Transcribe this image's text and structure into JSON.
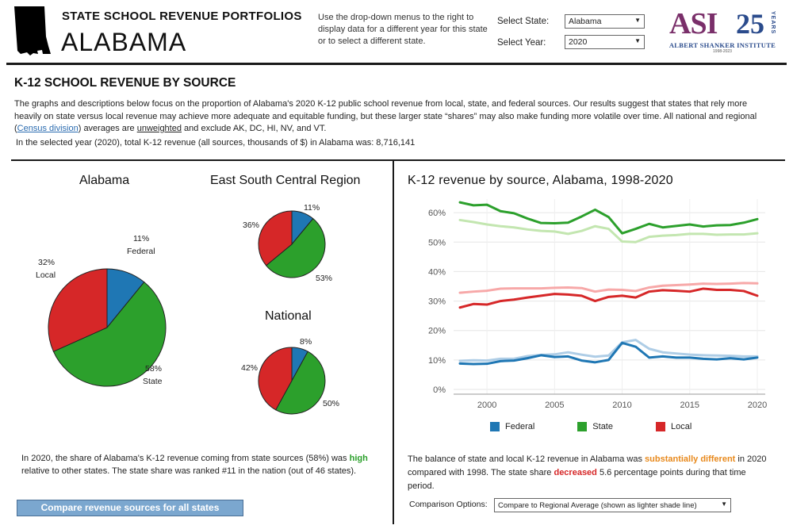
{
  "header": {
    "title": "STATE SCHOOL REVENUE PORTFOLIOS",
    "state_name": "ALABAMA",
    "instructions": "Use the drop-down menus to the right to display data for a different year for this state or to select a different state.",
    "select_state_label": "Select State:",
    "select_state_value": "Alabama",
    "select_year_label": "Select Year:",
    "select_year_value": "2020",
    "logo": {
      "letters": "ASI",
      "number": "25",
      "years": "YEARS",
      "name": "ALBERT SHANKER INSTITUTE",
      "dates": "1998-2023"
    }
  },
  "section": {
    "title": "K-12 SCHOOL REVENUE BY SOURCE",
    "para1_a": "The graphs and descriptions below focus on the proportion of Alabama's 2020 K-12 public school revenue from local, state, and federal sources. Our results suggest that states that rely more heavily on state versus local revenue may achieve more adequate and equitable funding, but these larger state “shares” may also make funding more volatile over time. All national and regional (",
    "para1_link": "Census division",
    "para1_b": ") averages are ",
    "para1_underline": "unweighted",
    "para1_c": " and exclude AK, DC, HI, NV, and VT.",
    "para2": "In the selected year (2020), total K-12 revenue (all sources, thousands of $) in Alabama was: 8,716,141"
  },
  "colors": {
    "federal": "#1f77b4",
    "state": "#2ca02c",
    "local": "#d62728",
    "federal_light": "#aecde6",
    "state_light": "#c3e6b0",
    "local_light": "#f7a8a8"
  },
  "pies": {
    "alabama": {
      "title": "Alabama",
      "labels": {
        "federal_pct": "11%",
        "federal_name": "Federal",
        "local_pct": "32%",
        "local_name": "Local",
        "state_pct": "58%",
        "state_name": "State"
      }
    },
    "region": {
      "title": "East South Central Region",
      "labels": {
        "federal_pct": "11%",
        "local_pct": "36%",
        "state_pct": "53%"
      }
    },
    "national": {
      "title": "National",
      "labels": {
        "federal_pct": "8%",
        "local_pct": "42%",
        "state_pct": "50%"
      }
    }
  },
  "state_text": {
    "a": "In 2020, the share of Alabama's K-12 revenue coming from state sources (58%) was ",
    "highlight": "high",
    "b": " relative to other states. The state share was ranked #11 in the nation (out of 46 states)."
  },
  "compare_button": "Compare revenue sources for all states",
  "balance_text": {
    "a": "The balance of state and local K-12 revenue in Alabama was ",
    "highlight1": "substantially different",
    "b": " in 2020 compared with 1998. The state share ",
    "highlight2": "decreased",
    "c": " 5.6 percentage points during that time period."
  },
  "comparison": {
    "label": "Comparison Options:",
    "value": "Compare to Regional Average (shown as lighter shade line)"
  },
  "chart_data": [
    {
      "type": "pie",
      "title": "Alabama",
      "categories": [
        "Federal",
        "State",
        "Local"
      ],
      "values": [
        11,
        58,
        32
      ]
    },
    {
      "type": "pie",
      "title": "East South Central Region",
      "categories": [
        "Federal",
        "State",
        "Local"
      ],
      "values": [
        11,
        53,
        36
      ]
    },
    {
      "type": "pie",
      "title": "National",
      "categories": [
        "Federal",
        "State",
        "Local"
      ],
      "values": [
        8,
        50,
        42
      ]
    },
    {
      "type": "line",
      "title": "K-12 revenue by source, Alabama, 1998-2020",
      "x": [
        1998,
        1999,
        2000,
        2001,
        2002,
        2003,
        2004,
        2005,
        2006,
        2007,
        2008,
        2009,
        2010,
        2011,
        2012,
        2013,
        2014,
        2015,
        2016,
        2017,
        2018,
        2019,
        2020
      ],
      "xticks": [
        "2000",
        "2005",
        "2010",
        "2015",
        "2020"
      ],
      "yticks": [
        "0%",
        "10%",
        "20%",
        "30%",
        "40%",
        "50%",
        "60%"
      ],
      "ylim": [
        0,
        63
      ],
      "grid": true,
      "legend_position": "bottom",
      "series": [
        {
          "name": "State",
          "values": [
            63.5,
            62.5,
            62.7,
            60.5,
            59.8,
            58.0,
            56.5,
            56.4,
            56.6,
            58.7,
            61.0,
            58.5,
            53.0,
            54.5,
            56.2,
            55.0,
            55.5,
            56.0,
            55.3,
            55.7,
            55.8,
            56.6,
            57.8
          ]
        },
        {
          "name": "Local",
          "values": [
            27.8,
            29.0,
            28.8,
            30.0,
            30.5,
            31.2,
            31.8,
            32.4,
            32.2,
            31.8,
            30.0,
            31.4,
            31.8,
            31.2,
            33.2,
            33.7,
            33.5,
            33.2,
            34.2,
            33.8,
            33.8,
            33.4,
            31.8
          ]
        },
        {
          "name": "Federal",
          "values": [
            8.8,
            8.6,
            8.7,
            9.6,
            9.8,
            10.6,
            11.6,
            11.0,
            11.2,
            9.8,
            9.2,
            10.0,
            15.8,
            14.5,
            10.8,
            11.2,
            10.8,
            10.8,
            10.4,
            10.2,
            10.6,
            10.2,
            10.8
          ]
        },
        {
          "name": "State (regional average)",
          "values": [
            57.5,
            56.8,
            56.0,
            55.4,
            55.0,
            54.3,
            53.8,
            53.6,
            52.8,
            53.8,
            55.4,
            54.5,
            50.2,
            50.0,
            51.8,
            52.2,
            52.4,
            52.8,
            52.8,
            52.5,
            52.6,
            52.6,
            53.0
          ]
        },
        {
          "name": "Local (regional average)",
          "values": [
            32.8,
            33.2,
            33.5,
            34.2,
            34.3,
            34.3,
            34.3,
            34.5,
            34.6,
            34.4,
            33.2,
            33.9,
            33.8,
            33.4,
            34.6,
            35.2,
            35.4,
            35.6,
            35.9,
            35.8,
            35.9,
            36.1,
            36.0
          ]
        },
        {
          "name": "Federal (regional average)",
          "values": [
            9.7,
            9.9,
            9.8,
            10.4,
            10.4,
            11.3,
            11.7,
            11.9,
            12.6,
            11.8,
            11.1,
            11.5,
            16.0,
            16.8,
            13.8,
            12.6,
            12.2,
            11.8,
            11.6,
            11.5,
            11.4,
            11.2,
            11.2
          ]
        }
      ]
    }
  ]
}
